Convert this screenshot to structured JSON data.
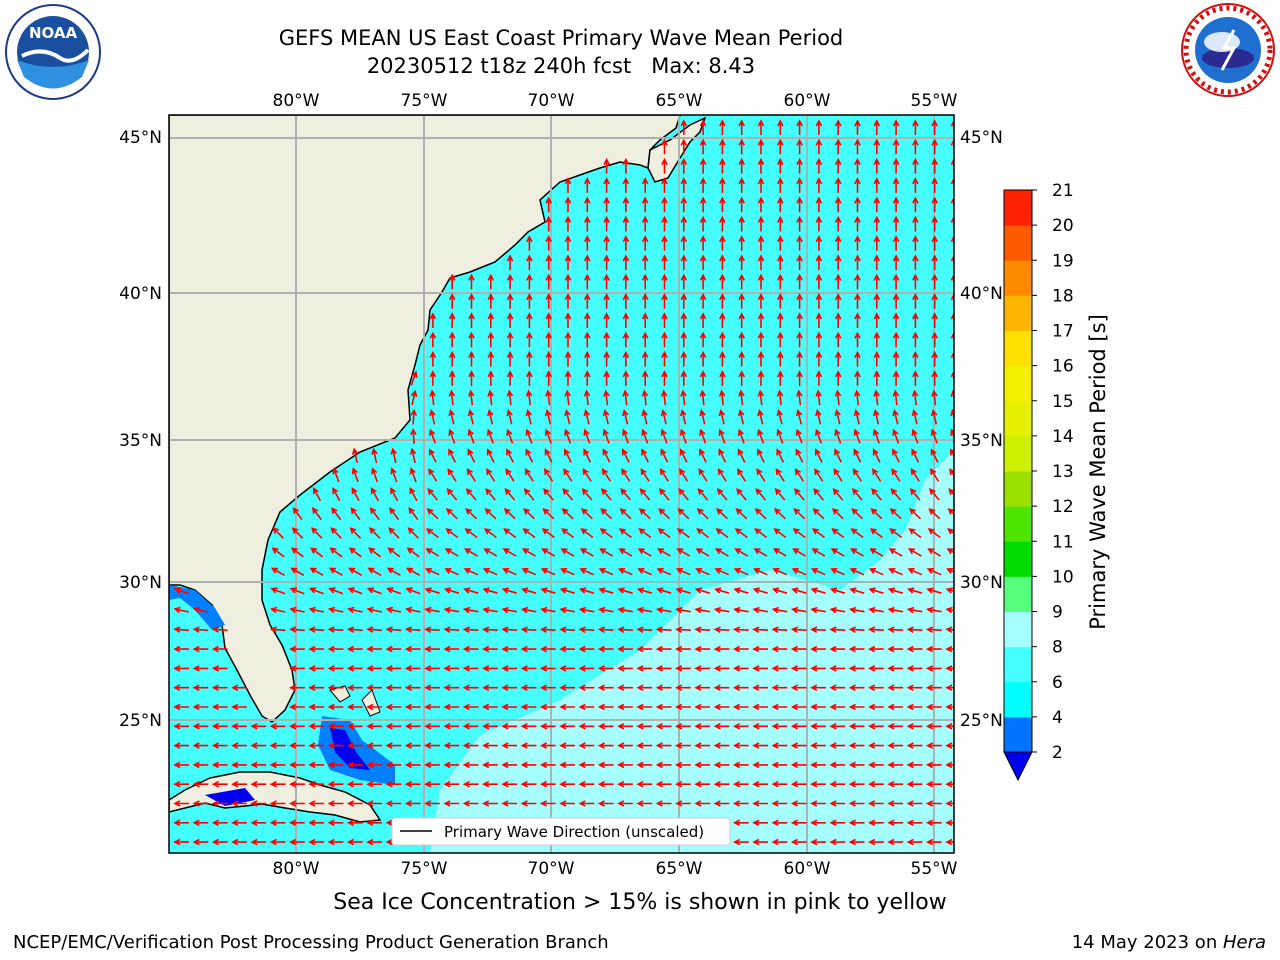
{
  "title": {
    "line1": "GEFS MEAN US East Coast Primary Wave Mean Period",
    "line2": "20230512 t18z 240h fcst   Max: 8.43"
  },
  "logos": {
    "noaa_text": "NOAA",
    "noaa_ring": "NATIONAL OCEANIC AND ATMOSPHERIC ADMINISTRATION · U.S. DEPARTMENT OF COMMERCE",
    "nws_ring": "NATIONAL WEATHER SERVICE"
  },
  "map": {
    "lon_labels": [
      "80°W",
      "75°W",
      "70°W",
      "65°W",
      "60°W",
      "55°W"
    ],
    "lat_labels": [
      "45°N",
      "40°N",
      "35°N",
      "30°N",
      "25°N"
    ],
    "lon_range": [
      -85,
      -54.7
    ],
    "lat_range": [
      20.5,
      46
    ],
    "legend": "Primary Wave Direction (unscaled)",
    "colors": {
      "land": "#efefdf",
      "ocean_6_8": "#45ffff",
      "ocean_8_9": "#a5ffff",
      "ocean_4_6": "#00ffff",
      "ocean_2_4": "#0080ff",
      "ocean_lt2": "#0000f0",
      "arrow": "#ff0000",
      "grid": "#b0b0b0"
    }
  },
  "colorbar": {
    "label": "Primary Wave Mean Period [s]",
    "ticks": [
      "2",
      "4",
      "6",
      "8",
      "9",
      "10",
      "11",
      "12",
      "13",
      "14",
      "15",
      "16",
      "17",
      "18",
      "19",
      "20",
      "21"
    ],
    "colors": [
      "#0073ff",
      "#00ffff",
      "#45ffff",
      "#a5ffff",
      "#55ff7d",
      "#00dc00",
      "#4ee600",
      "#9be000",
      "#cdf000",
      "#e4f000",
      "#f4f000",
      "#ffe000",
      "#ffb400",
      "#ff8c00",
      "#ff5a00",
      "#ff2200"
    ],
    "under_color": "#0000f0"
  },
  "note": "Sea Ice Concentration > 15% is shown in pink to yellow",
  "footer": {
    "left": "NCEP/EMC/Verification Post Processing Product Generation Branch",
    "date": "14 May 2023 on ",
    "machine": "Hera"
  }
}
